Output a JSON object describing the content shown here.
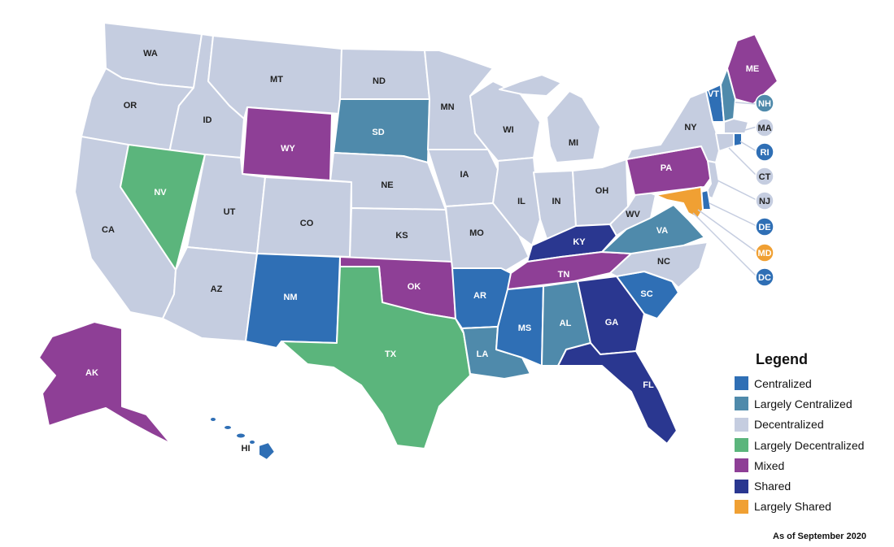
{
  "categories": {
    "centralized": {
      "label": "Centralized",
      "color": "#2f6fb5"
    },
    "largely_centralized": {
      "label": "Largely Centralized",
      "color": "#4f8aab"
    },
    "decentralized": {
      "label": "Decentralized",
      "color": "#c5cde0"
    },
    "largely_decentralized": {
      "label": "Largely Decentralized",
      "color": "#5bb57c"
    },
    "mixed": {
      "label": "Mixed",
      "color": "#8e3f96"
    },
    "shared": {
      "label": "Shared",
      "color": "#2a3790"
    },
    "largely_shared": {
      "label": "Largely Shared",
      "color": "#f0a033"
    }
  },
  "legend": {
    "title": "Legend",
    "order": [
      "centralized",
      "largely_centralized",
      "decentralized",
      "largely_decentralized",
      "mixed",
      "shared",
      "largely_shared"
    ]
  },
  "states": {
    "WA": "decentralized",
    "OR": "decentralized",
    "CA": "decentralized",
    "ID": "decentralized",
    "NV": "largely_decentralized",
    "MT": "decentralized",
    "WY": "mixed",
    "UT": "decentralized",
    "AZ": "decentralized",
    "CO": "decentralized",
    "NM": "centralized",
    "ND": "decentralized",
    "SD": "largely_centralized",
    "NE": "decentralized",
    "KS": "decentralized",
    "OK": "mixed",
    "TX": "largely_decentralized",
    "MN": "decentralized",
    "IA": "decentralized",
    "MO": "decentralized",
    "AR": "centralized",
    "LA": "largely_centralized",
    "WI": "decentralized",
    "IL": "decentralized",
    "MI": "decentralized",
    "IN": "decentralized",
    "OH": "decentralized",
    "KY": "shared",
    "TN": "mixed",
    "MS": "centralized",
    "AL": "largely_centralized",
    "GA": "shared",
    "FL": "shared",
    "SC": "centralized",
    "NC": "decentralized",
    "VA": "largely_centralized",
    "WV": "decentralized",
    "PA": "mixed",
    "NY": "decentralized",
    "VT": "centralized",
    "NH": "largely_centralized",
    "ME": "mixed",
    "MA": "decentralized",
    "RI": "centralized",
    "CT": "decentralized",
    "NJ": "decentralized",
    "DE": "centralized",
    "MD": "largely_shared",
    "DC": "centralized",
    "AK": "mixed",
    "HI": "centralized"
  },
  "footnote": "As of September 2020"
}
